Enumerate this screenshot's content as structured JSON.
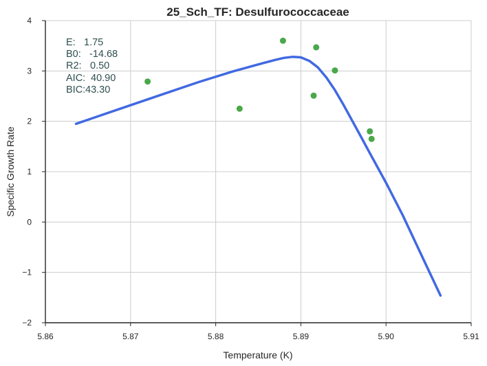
{
  "chart_data": {
    "type": "scatter",
    "title": "25_Sch_TF: Desulfurococcaceae",
    "xlabel": "Temperature (K)",
    "ylabel": "Specific Growth Rate",
    "xlim": [
      5.86,
      5.91
    ],
    "ylim": [
      -2,
      4
    ],
    "xticks": [
      5.86,
      5.87,
      5.88,
      5.89,
      5.9,
      5.91
    ],
    "xtick_labels": [
      "5.86",
      "5.87",
      "5.88",
      "5.89",
      "5.90",
      "5.91"
    ],
    "yticks": [
      -2,
      -1,
      0,
      1,
      2,
      3,
      4
    ],
    "ytick_labels": [
      "−2",
      "−1",
      "0",
      "1",
      "2",
      "3",
      "4"
    ],
    "grid": true,
    "series": [
      {
        "kind": "points",
        "color": "#4aa84a",
        "x": [
          5.872,
          5.8828,
          5.8879,
          5.8915,
          5.8918,
          5.894,
          5.8981,
          5.8983
        ],
        "y": [
          2.79,
          2.25,
          3.6,
          2.51,
          3.47,
          3.01,
          1.8,
          1.65
        ]
      },
      {
        "kind": "line",
        "color": "#4169e1",
        "x": [
          5.8636,
          5.866,
          5.87,
          5.874,
          5.878,
          5.882,
          5.885,
          5.887,
          5.888,
          5.889,
          5.89,
          5.891,
          5.892,
          5.893,
          5.894,
          5.895,
          5.896,
          5.897,
          5.898,
          5.899,
          5.9,
          5.902,
          5.904,
          5.9064
        ],
        "y": [
          1.95,
          2.09,
          2.32,
          2.55,
          2.78,
          2.99,
          3.13,
          3.22,
          3.26,
          3.28,
          3.27,
          3.2,
          3.07,
          2.87,
          2.62,
          2.33,
          2.02,
          1.71,
          1.4,
          1.09,
          0.78,
          0.12,
          -0.6,
          -1.46
        ]
      }
    ],
    "annotation": [
      {
        "label": "E:",
        "value": "1.75"
      },
      {
        "label": "B0:",
        "value": "-14.68"
      },
      {
        "label": "R2:",
        "value": "0.50"
      },
      {
        "label": "AIC:",
        "value": "40.90"
      },
      {
        "label": "BIC:",
        "value": "43.30"
      }
    ],
    "colors": {
      "grid": "#cccccc",
      "axis": "#262626"
    }
  }
}
